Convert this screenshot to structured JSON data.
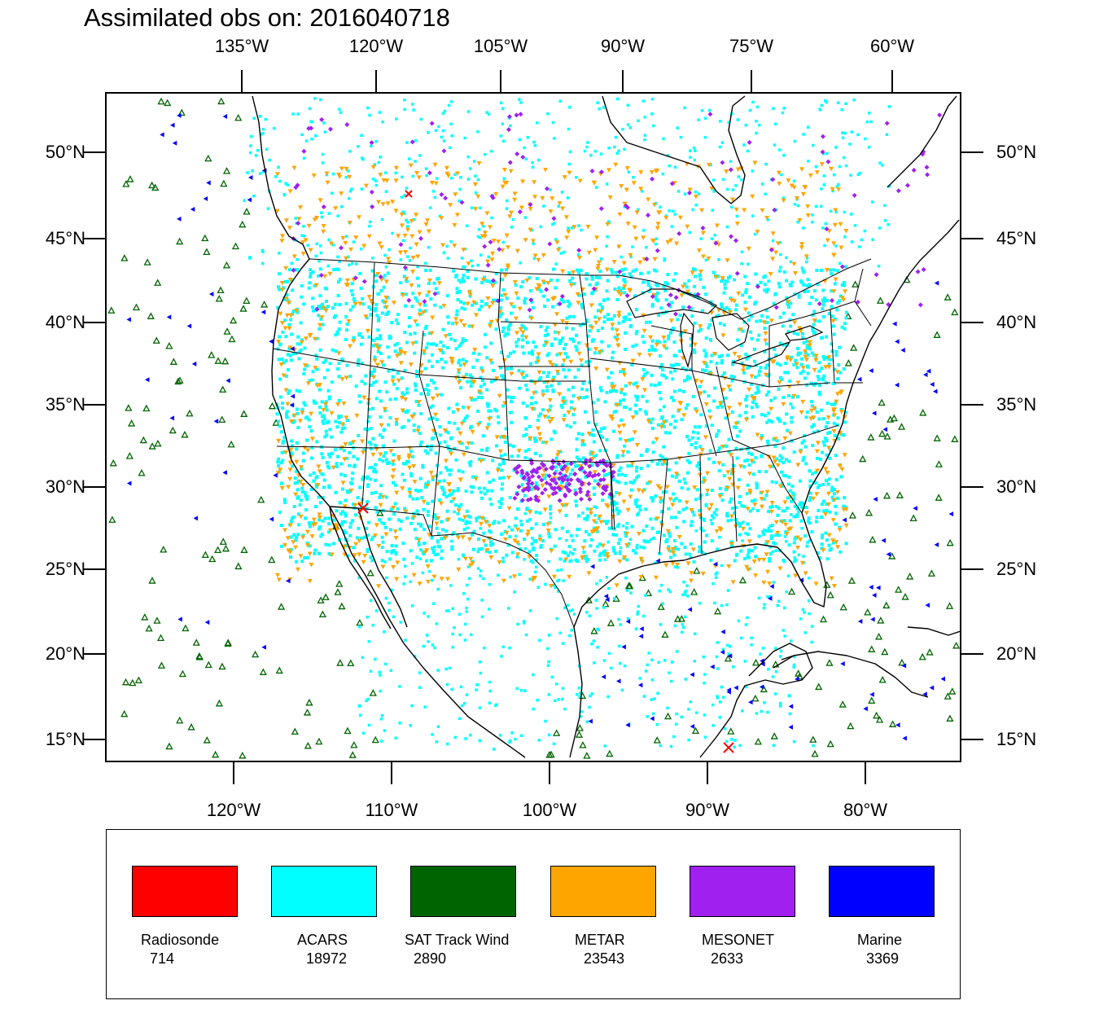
{
  "title": "Assimilated obs on: 2016040718",
  "top_longitudes": [
    "135°W",
    "120°W",
    "105°W",
    "90°W",
    "75°W",
    "60°W"
  ],
  "bottom_longitudes": [
    "120°W",
    "110°W",
    "100°W",
    "90°W",
    "80°W"
  ],
  "left_latitudes": [
    "50°N",
    "45°N",
    "40°N",
    "35°N",
    "30°N",
    "25°N",
    "20°N",
    "15°N"
  ],
  "right_latitudes": [
    "50°N",
    "45°N",
    "40°N",
    "35°N",
    "30°N",
    "25°N",
    "20°N",
    "15°N"
  ],
  "legend": [
    {
      "name": "Radiosonde",
      "count": "714",
      "color": "#ff0000"
    },
    {
      "name": "ACARS",
      "count": "18972",
      "color": "#00ffff"
    },
    {
      "name": "SAT Track Wind",
      "count": "2890",
      "color": "#006400"
    },
    {
      "name": "METAR",
      "count": "23543",
      "color": "#ffa500"
    },
    {
      "name": "MESONET",
      "count": "2633",
      "color": "#a020f0"
    },
    {
      "name": "Marine",
      "count": "3369",
      "color": "#0000ff"
    }
  ]
}
